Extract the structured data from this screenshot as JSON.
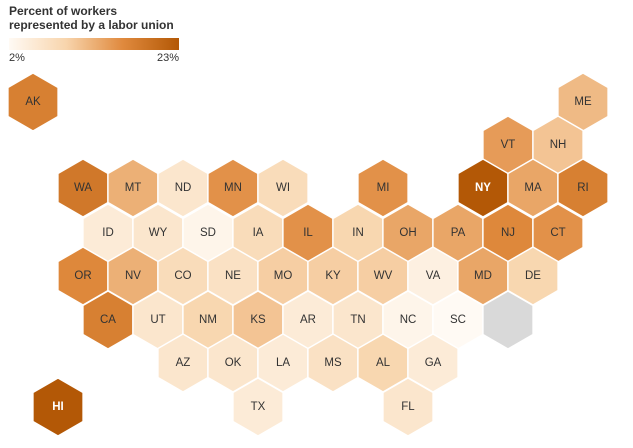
{
  "legend": {
    "title_line1": "Percent of workers",
    "title_line2": "represented by a labor union",
    "min_label": "2%",
    "max_label": "23%",
    "min_value": 2,
    "max_value": 23,
    "color_low": "#fffaf4",
    "color_high": "#b35806",
    "color_nodata": "#d9d9d9"
  },
  "chart_data": {
    "type": "hex-tile-map",
    "states": [
      {
        "abbr": "AK",
        "value": 18
      },
      {
        "abbr": "ME",
        "value": 12
      },
      {
        "abbr": "VT",
        "value": 15
      },
      {
        "abbr": "NH",
        "value": 11
      },
      {
        "abbr": "WA",
        "value": 19
      },
      {
        "abbr": "MT",
        "value": 13
      },
      {
        "abbr": "ND",
        "value": 6
      },
      {
        "abbr": "MN",
        "value": 16
      },
      {
        "abbr": "WI",
        "value": 8
      },
      {
        "abbr": "MI",
        "value": 16
      },
      {
        "abbr": "NY",
        "value": 23
      },
      {
        "abbr": "MA",
        "value": 14
      },
      {
        "abbr": "RI",
        "value": 18
      },
      {
        "abbr": "ID",
        "value": 5
      },
      {
        "abbr": "WY",
        "value": 6
      },
      {
        "abbr": "SD",
        "value": 3
      },
      {
        "abbr": "IA",
        "value": 8
      },
      {
        "abbr": "IL",
        "value": 16
      },
      {
        "abbr": "IN",
        "value": 9
      },
      {
        "abbr": "OH",
        "value": 14
      },
      {
        "abbr": "PA",
        "value": 14
      },
      {
        "abbr": "NJ",
        "value": 17
      },
      {
        "abbr": "CT",
        "value": 16
      },
      {
        "abbr": "OR",
        "value": 17
      },
      {
        "abbr": "NV",
        "value": 13
      },
      {
        "abbr": "CO",
        "value": 8
      },
      {
        "abbr": "NE",
        "value": 7
      },
      {
        "abbr": "MO",
        "value": 10
      },
      {
        "abbr": "KY",
        "value": 10
      },
      {
        "abbr": "WV",
        "value": 10
      },
      {
        "abbr": "VA",
        "value": 4
      },
      {
        "abbr": "MD",
        "value": 14
      },
      {
        "abbr": "DE",
        "value": 9
      },
      {
        "abbr": "CA",
        "value": 18
      },
      {
        "abbr": "UT",
        "value": 6
      },
      {
        "abbr": "NM",
        "value": 9
      },
      {
        "abbr": "KS",
        "value": 11
      },
      {
        "abbr": "AR",
        "value": 5
      },
      {
        "abbr": "TN",
        "value": 6
      },
      {
        "abbr": "NC",
        "value": 3
      },
      {
        "abbr": "SC",
        "value": 2
      },
      {
        "abbr": "",
        "value": null
      },
      {
        "abbr": "AZ",
        "value": 6
      },
      {
        "abbr": "OK",
        "value": 6
      },
      {
        "abbr": "LA",
        "value": 5
      },
      {
        "abbr": "MS",
        "value": 7
      },
      {
        "abbr": "AL",
        "value": 9
      },
      {
        "abbr": "GA",
        "value": 5
      },
      {
        "abbr": "HI",
        "value": 23
      },
      {
        "abbr": "TX",
        "value": 5
      },
      {
        "abbr": "FL",
        "value": 6
      }
    ]
  }
}
